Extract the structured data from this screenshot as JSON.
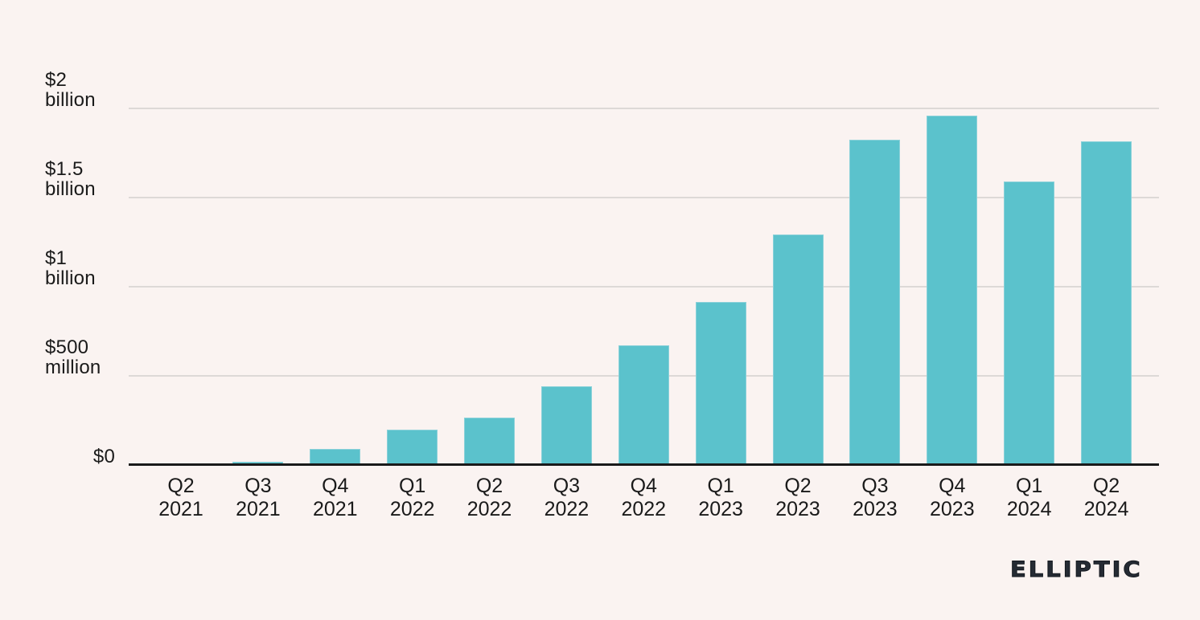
{
  "page": {
    "background_color": "#faf3f1"
  },
  "chart_data": {
    "type": "bar",
    "title": "",
    "xlabel": "",
    "ylabel": "",
    "categories": [
      "Q2 2021",
      "Q3 2021",
      "Q4 2021",
      "Q1 2022",
      "Q2 2022",
      "Q3 2022",
      "Q4 2022",
      "Q1 2023",
      "Q2 2023",
      "Q3 2023",
      "Q4 2023",
      "Q1 2024",
      "Q2 2024"
    ],
    "values": [
      5,
      20,
      90,
      200,
      265,
      440,
      670,
      915,
      1295,
      1825,
      1960,
      1590,
      1815
    ],
    "values_unit": "USD millions",
    "ylim": [
      0,
      2000
    ],
    "grid": "horizontal",
    "legend": "none",
    "y_ticks": [
      {
        "value": 2000,
        "label": "$2\nbillion"
      },
      {
        "value": 1500,
        "label": "$1.5\nbillion"
      },
      {
        "value": 1000,
        "label": "$1\nbillion"
      },
      {
        "value": 500,
        "label": "$500\nmillion"
      },
      {
        "value": 0,
        "label": "$0"
      }
    ],
    "colors": {
      "bar": "#5bc2cc",
      "bar_edge": "#8ad1d9",
      "gridline": "#ddd9d7",
      "axis": "#1a1a1a",
      "text": "#1a1a1a"
    }
  },
  "logo": {
    "text": "ELLIPTIC"
  }
}
